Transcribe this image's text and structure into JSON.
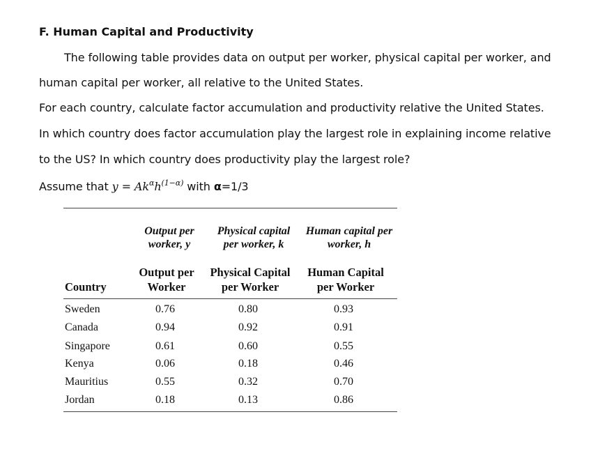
{
  "section": {
    "title": "F.   Human Capital and Productivity"
  },
  "paragraph": {
    "line1": "The following table provides data on output per worker, physical capital per worker, and",
    "line2": "human capital per worker, all relative to the United States.",
    "line3": "For each country, calculate factor accumulation and productivity relative the United States.",
    "line4": "In which country does factor accumulation play the largest role in explaining income relative",
    "line5": "to the US? In which country does productivity play the largest role?",
    "assume_prefix": "Assume that ",
    "formula_lhs": "y",
    "formula_eq": "=",
    "formula_A": "Ak",
    "formula_alpha_exp": "α",
    "formula_h": "h",
    "formula_h_exp": "(1−α)",
    "assume_mid": " with ",
    "alpha_symbol": "α",
    "alpha_value": "=1/3"
  },
  "table": {
    "italic_headers": {
      "col1_line1": "Output per",
      "col1_line2": "worker, y",
      "col2_line1": "Physical capital",
      "col2_line2": "per worker, k",
      "col3_line1": "Human capital per",
      "col3_line2": "worker, h"
    },
    "headers": {
      "country": "Country",
      "col1_line1": "Output per",
      "col1_line2": "Worker",
      "col2_line1": "Physical Capital",
      "col2_line2": "per Worker",
      "col3_line1": "Human Capital",
      "col3_line2": "per Worker"
    },
    "rows": [
      {
        "country": "Sweden",
        "output": "0.76",
        "physical": "0.80",
        "human": "0.93"
      },
      {
        "country": "Canada",
        "output": "0.94",
        "physical": "0.92",
        "human": "0.91"
      },
      {
        "country": "Singapore",
        "output": "0.61",
        "physical": "0.60",
        "human": "0.55"
      },
      {
        "country": "Kenya",
        "output": "0.06",
        "physical": "0.18",
        "human": "0.46"
      },
      {
        "country": "Mauritius",
        "output": "0.55",
        "physical": "0.32",
        "human": "0.70"
      },
      {
        "country": "Jordan",
        "output": "0.18",
        "physical": "0.13",
        "human": "0.86"
      }
    ]
  }
}
